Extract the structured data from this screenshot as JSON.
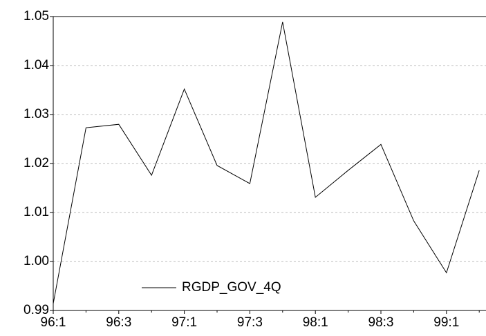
{
  "chart_data": {
    "type": "line",
    "categories": [
      "96:1",
      null,
      "96:3",
      null,
      "97:1",
      null,
      "97:3",
      null,
      "98:1",
      null,
      "98:3",
      null,
      "99:1",
      null
    ],
    "series": [
      {
        "name": "RGDP_GOV_4Q",
        "color": "#000000",
        "values": [
          0.9914,
          1.0273,
          1.028,
          1.0176,
          1.0352,
          1.0196,
          1.0159,
          1.0489,
          1.0131,
          1.0186,
          1.0239,
          1.0083,
          0.9977,
          1.0186
        ]
      }
    ],
    "ylim": [
      0.99,
      1.05
    ],
    "yticks": [
      0.99,
      {
        "value": 1.0,
        "label": "1.00"
      },
      1.01,
      1.02,
      1.03,
      1.04,
      1.05
    ],
    "grid": true
  }
}
